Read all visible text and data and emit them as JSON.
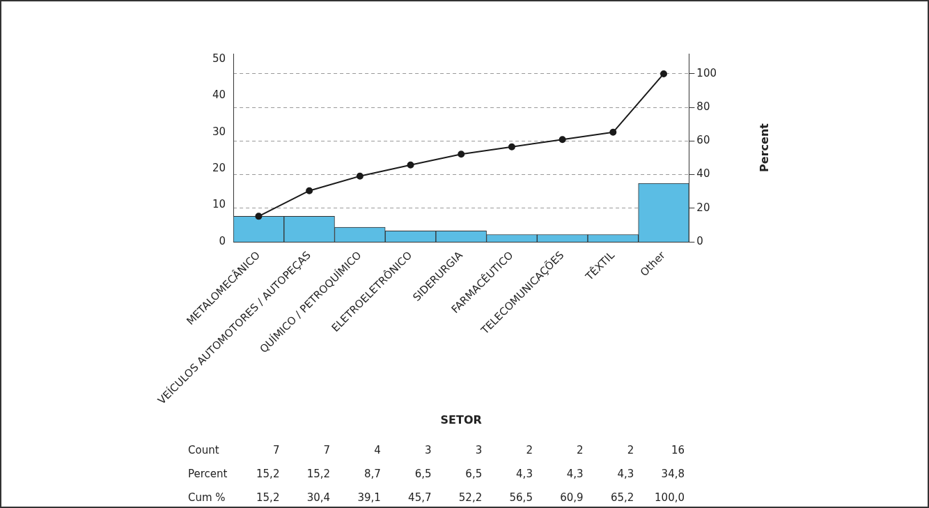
{
  "chart_data": {
    "type": "bar",
    "xlabel": "SETOR",
    "y2label": "Percent",
    "categories": [
      "METALOMECÂNICO",
      "VEÍCULOS AUTOMOTORES / AUTOPEÇAS",
      "QUÍMICO / PETROQUÍMICO",
      "ELETROELETRÔNICO",
      "SIDERURGIA",
      "FARMACÊUTICO",
      "TELECOMUNICAÇÕES",
      "TÊXTIL",
      "Other"
    ],
    "series": [
      {
        "color": "#5bbde4",
        "values": [
          7,
          7,
          4,
          3,
          3,
          2,
          2,
          2,
          16
        ],
        "value_labels": [
          "7",
          "7",
          "4",
          "3",
          "3",
          "2",
          "2",
          "2",
          "16"
        ]
      },
      {
        "type": "line",
        "axis": "y2",
        "color": "#1a1a1a",
        "values": [
          15.2,
          30.4,
          39.1,
          45.7,
          52.2,
          56.5,
          60.9,
          65.2,
          100.0
        ],
        "value_labels": [
          "15,2",
          "30,4",
          "39,1",
          "45,7",
          "52,2",
          "56,5",
          "60,9",
          "65,2",
          "100,0"
        ]
      }
    ],
    "annotations": [
      "Count",
      "Percent",
      "Cum %",
      "15,2",
      "15,2",
      "8,7",
      "6,5",
      "6,5",
      "4,3",
      "4,3",
      "4,3",
      "34,8"
    ],
    "ylim": [
      0,
      51.5
    ],
    "yticks": [
      0,
      10,
      20,
      30,
      40,
      50
    ],
    "y2lim": [
      0,
      112
    ],
    "y2ticks": [
      0,
      20,
      40,
      60,
      80,
      100
    ],
    "grid": "y2",
    "legend": false,
    "marker": "circle",
    "line_style": "solid"
  }
}
